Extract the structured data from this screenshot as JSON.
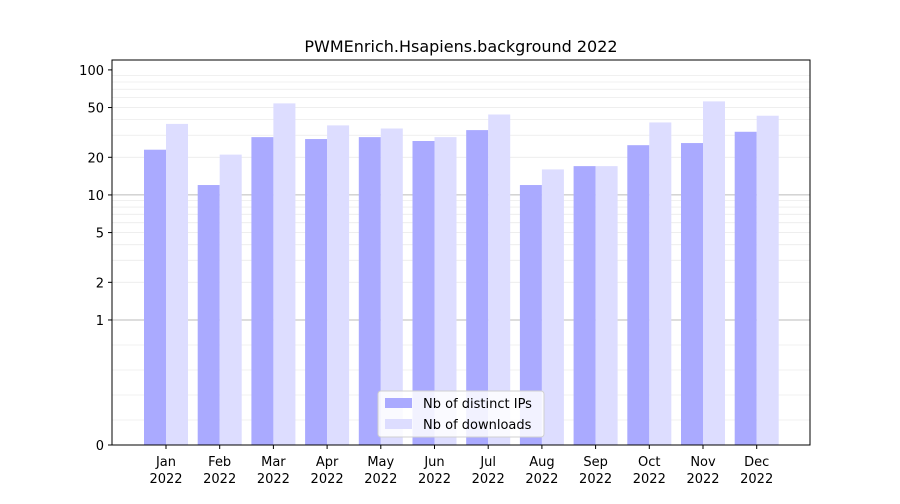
{
  "chart_data": {
    "type": "bar",
    "title": "PWMEnrich.Hsapiens.background 2022",
    "xlabel": "",
    "ylabel": "",
    "categories": [
      [
        "Jan",
        "2022"
      ],
      [
        "Feb",
        "2022"
      ],
      [
        "Mar",
        "2022"
      ],
      [
        "Apr",
        "2022"
      ],
      [
        "May",
        "2022"
      ],
      [
        "Jun",
        "2022"
      ],
      [
        "Jul",
        "2022"
      ],
      [
        "Aug",
        "2022"
      ],
      [
        "Sep",
        "2022"
      ],
      [
        "Oct",
        "2022"
      ],
      [
        "Nov",
        "2022"
      ],
      [
        "Dec",
        "2022"
      ]
    ],
    "series": [
      {
        "name": "Nb of distinct IPs",
        "color": "#aaaaff",
        "values": [
          23,
          12,
          29,
          28,
          29,
          27,
          33,
          12,
          17,
          25,
          26,
          32
        ]
      },
      {
        "name": "Nb of downloads",
        "color": "#ddddff",
        "values": [
          37,
          21,
          54,
          36,
          34,
          29,
          44,
          16,
          17,
          38,
          56,
          43
        ]
      }
    ],
    "y_scale": "symlog",
    "ylim": [
      0,
      120
    ],
    "y_ticks": [
      {
        "value": 0,
        "label": "0"
      },
      {
        "value": 1,
        "label": "1"
      },
      {
        "value": 2,
        "label": "2"
      },
      {
        "value": 5,
        "label": "5"
      },
      {
        "value": 10,
        "label": "10"
      },
      {
        "value": 20,
        "label": "20"
      },
      {
        "value": 50,
        "label": "50"
      },
      {
        "value": 100,
        "label": "100"
      }
    ],
    "reference_lines": [
      1,
      10
    ],
    "grid": true,
    "legend_position": "bottom-center"
  }
}
